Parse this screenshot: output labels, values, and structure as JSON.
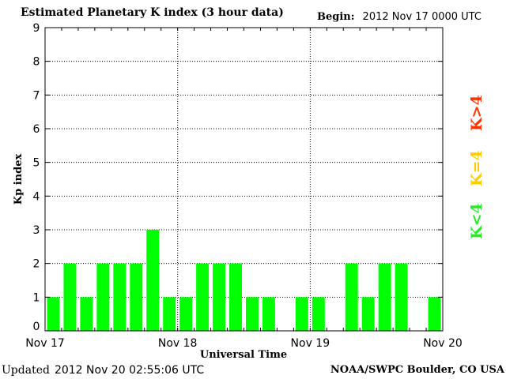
{
  "header": {
    "title": "Estimated Planetary K index (3 hour data)",
    "begin_label": "Begin:",
    "begin_value": "2012 Nov 17 0000 UTC"
  },
  "footer": {
    "updated_label": "Updated",
    "updated_value": "2012 Nov 20 02:55:06 UTC",
    "source": "NOAA/SWPC Boulder, CO USA"
  },
  "legend": [
    {
      "label": "K<4",
      "color": "#22ee22"
    },
    {
      "label": "K=4",
      "color": "#ffcc00"
    },
    {
      "label": "K>4",
      "color": "#ff3300"
    }
  ],
  "chart_data": {
    "type": "bar",
    "title": "Estimated Planetary K index (3 hour data)",
    "xlabel": "Universal Time",
    "ylabel": "Kp index",
    "ylim": [
      0,
      9
    ],
    "yticks": [
      0,
      1,
      2,
      3,
      4,
      5,
      6,
      7,
      8,
      9
    ],
    "xticks": [
      "Nov 17",
      "Nov 18",
      "Nov 19",
      "Nov 20"
    ],
    "interval_hours": 3,
    "slots": 24,
    "grid": "dotted",
    "bar_color": "#00ff00",
    "categories": [
      "Nov 17 00",
      "Nov 17 03",
      "Nov 17 06",
      "Nov 17 09",
      "Nov 17 12",
      "Nov 17 15",
      "Nov 17 18",
      "Nov 17 21",
      "Nov 18 00",
      "Nov 18 03",
      "Nov 18 06",
      "Nov 18 09",
      "Nov 18 12",
      "Nov 18 15",
      "Nov 18 18",
      "Nov 18 21",
      "Nov 19 00",
      "Nov 19 03",
      "Nov 19 06",
      "Nov 19 09",
      "Nov 19 12",
      "Nov 19 15",
      "Nov 19 18",
      "Nov 19 21"
    ],
    "values": [
      1,
      2,
      1,
      2,
      2,
      2,
      3,
      1,
      1,
      2,
      2,
      2,
      1,
      1,
      null,
      1,
      1,
      null,
      2,
      1,
      2,
      2,
      null,
      1
    ]
  }
}
